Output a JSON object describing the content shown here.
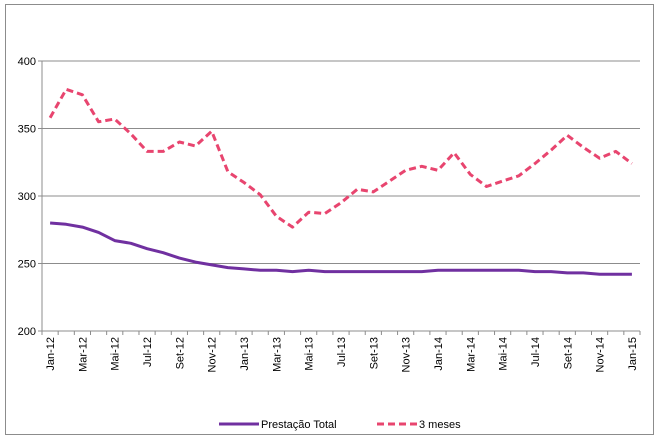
{
  "chart_data": {
    "type": "line",
    "title": "",
    "xlabel": "",
    "ylabel": "",
    "ylim": [
      200,
      400
    ],
    "yticks": [
      200,
      250,
      300,
      350,
      400
    ],
    "grid": true,
    "legend_position": "bottom",
    "x": [
      "Jan-12",
      "Fev-12",
      "Mar-12",
      "Abr-12",
      "Mai-12",
      "Jun-12",
      "Jul-12",
      "Ago-12",
      "Set-12",
      "Out-12",
      "Nov-12",
      "Dez-12",
      "Jan-13",
      "Fev-13",
      "Mar-13",
      "Abr-13",
      "Mai-13",
      "Jun-13",
      "Jul-13",
      "Ago-13",
      "Set-13",
      "Out-13",
      "Nov-13",
      "Dez-13",
      "Jan-14",
      "Fev-14",
      "Mar-14",
      "Abr-14",
      "Mai-14",
      "Jun-14",
      "Jul-14",
      "Ago-14",
      "Set-14",
      "Out-14",
      "Nov-14",
      "Dez-14",
      "Jan-15"
    ],
    "tick_labels": [
      "Jan-12",
      "Mar-12",
      "Mai-12",
      "Jul-12",
      "Set-12",
      "Nov-12",
      "Jan-13",
      "Mar-13",
      "Mai-13",
      "Jul-13",
      "Set-13",
      "Nov-13",
      "Jan-14",
      "Mar-14",
      "Mai-14",
      "Jul-14",
      "Set-14",
      "Nov-14",
      "Jan-15"
    ],
    "series": [
      {
        "name": "Prestação Total",
        "color": "#7030a0",
        "style": "solid",
        "values": [
          280,
          279,
          277,
          273,
          267,
          265,
          261,
          258,
          254,
          251,
          249,
          247,
          246,
          245,
          245,
          244,
          245,
          244,
          244,
          244,
          244,
          244,
          244,
          244,
          245,
          245,
          245,
          245,
          245,
          245,
          244,
          244,
          243,
          243,
          242,
          242,
          242
        ]
      },
      {
        "name": "3 meses",
        "color": "#e8456f",
        "style": "dashed",
        "values": [
          358,
          379,
          375,
          355,
          357,
          346,
          333,
          333,
          340,
          337,
          348,
          318,
          310,
          301,
          285,
          277,
          288,
          287,
          295,
          305,
          303,
          311,
          319,
          322,
          319,
          332,
          316,
          307,
          311,
          315,
          324,
          334,
          345,
          336,
          328,
          333,
          324
        ]
      }
    ]
  }
}
